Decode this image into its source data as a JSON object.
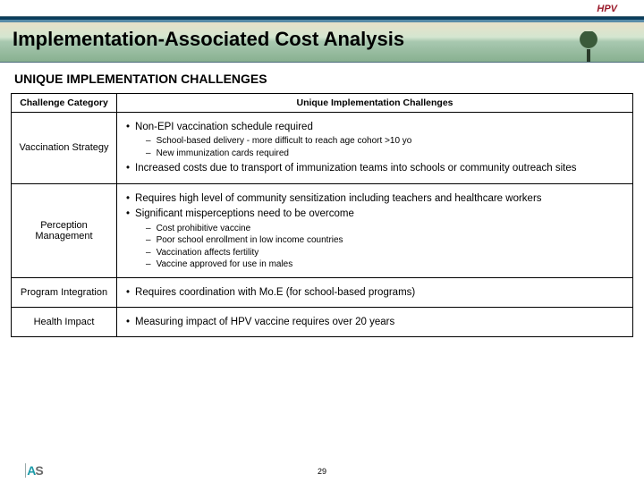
{
  "colors": {
    "tag": "#9a1a2a",
    "text": "#000000",
    "border": "#000000"
  },
  "header": {
    "tag": "HPV",
    "title": "Implementation-Associated Cost Analysis",
    "subtitle": "UNIQUE IMPLEMENTATION CHALLENGES"
  },
  "table": {
    "columns": [
      "Challenge Category",
      "Unique Implementation Challenges"
    ],
    "rows": [
      {
        "category": "Vaccination Strategy",
        "bullets": [
          {
            "text": "Non-EPI vaccination schedule required",
            "subs": [
              "School-based delivery - more difficult to reach age cohort >10 yo",
              "New immunization cards required"
            ]
          },
          {
            "text": "Increased costs due to transport of immunization teams into schools or community outreach sites",
            "subs": []
          }
        ]
      },
      {
        "category": "Perception Management",
        "bullets": [
          {
            "text": "Requires high level of community sensitization including teachers and healthcare workers",
            "subs": []
          },
          {
            "text": "Significant misperceptions need to be overcome",
            "subs": [
              "Cost prohibitive vaccine",
              "Poor school enrollment in low income countries",
              "Vaccination affects fertility",
              "Vaccine approved for use in males"
            ]
          }
        ]
      },
      {
        "category": "Program Integration",
        "bullets": [
          {
            "text": "Requires coordination with Mo.E (for school-based programs)",
            "subs": []
          }
        ]
      },
      {
        "category": "Health Impact",
        "bullets": [
          {
            "text": "Measuring impact of HPV vaccine requires over 20 years",
            "subs": []
          }
        ]
      }
    ]
  },
  "footer": {
    "page_number": "29"
  }
}
